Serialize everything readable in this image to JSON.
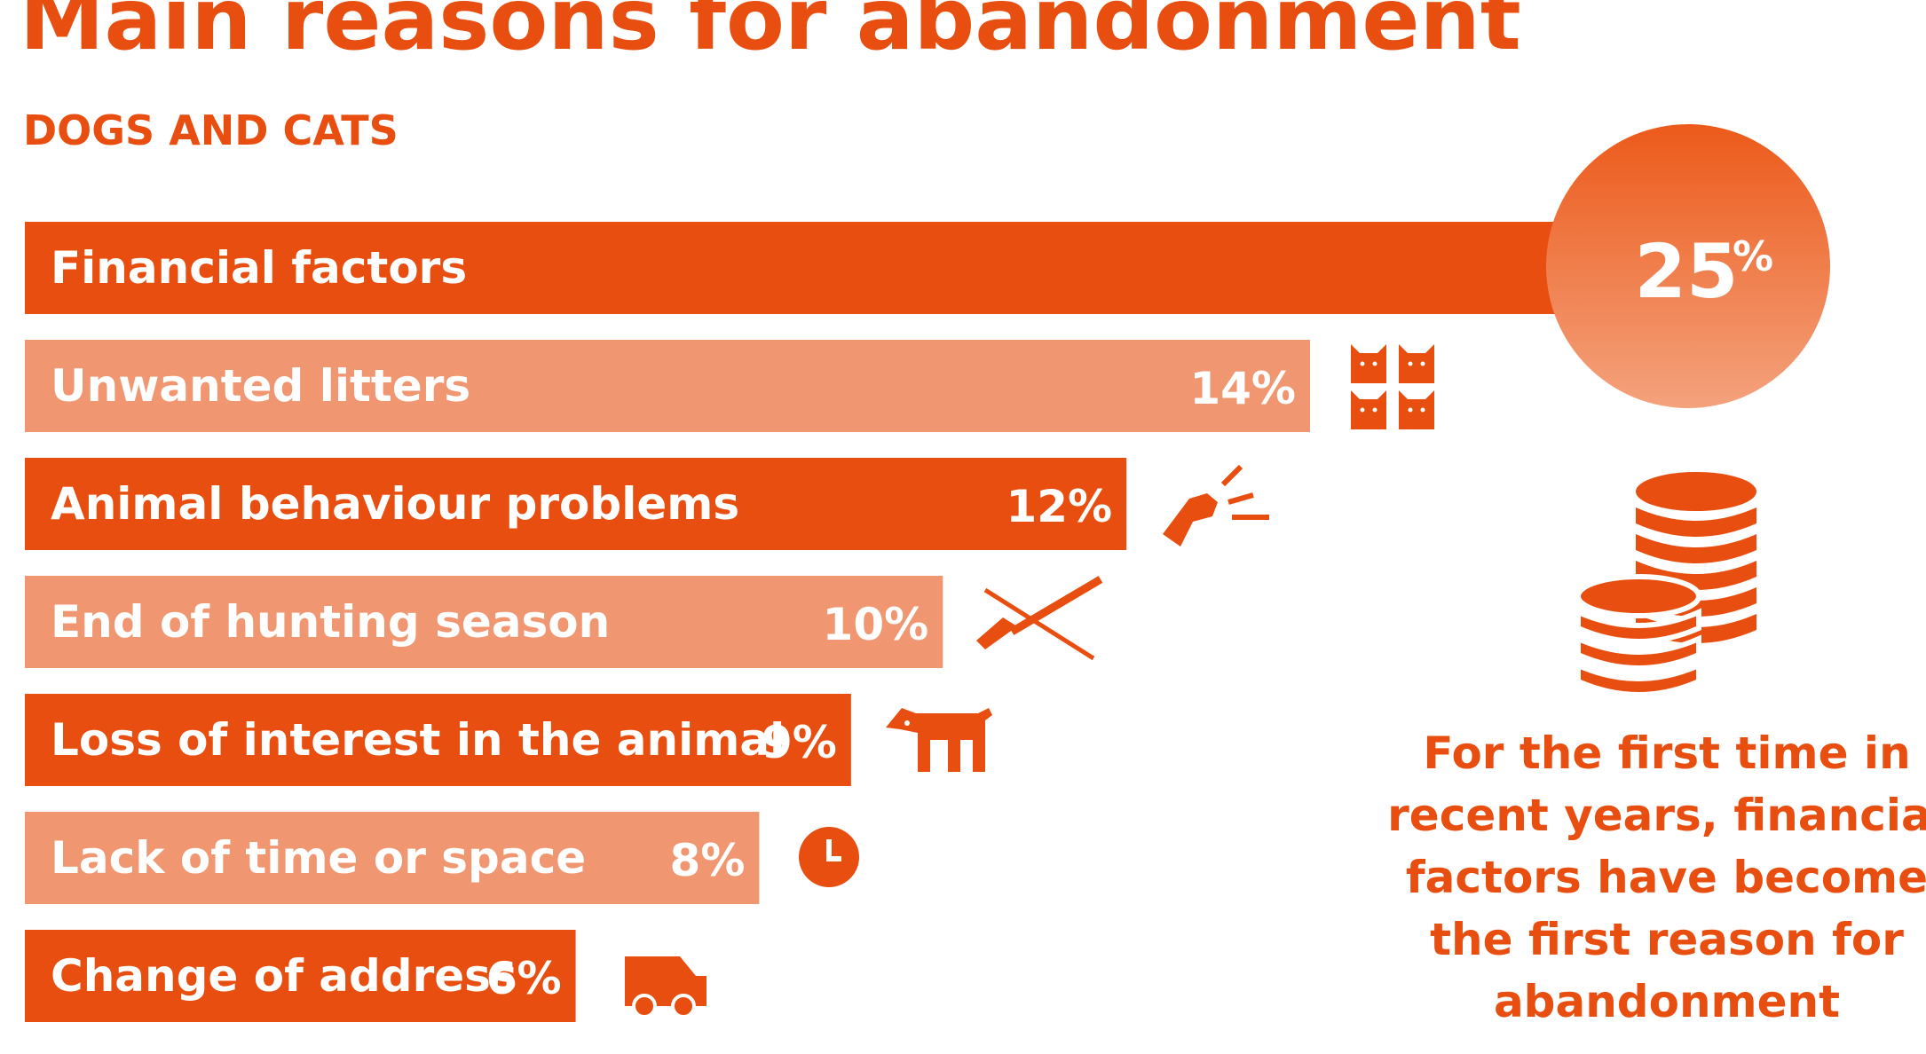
{
  "title": "Main reasons for abandonment",
  "subtitle": "DOGS AND CATS",
  "colors": {
    "accent": "#e84e0f",
    "dark_bar": "#e84e0f",
    "light_bar": "#f09670",
    "text_on_bar": "#ffffff"
  },
  "chart_data": {
    "type": "bar",
    "orientation": "horizontal",
    "title": "Main reasons for abandonment",
    "subtitle": "DOGS AND CATS",
    "unit": "%",
    "categories": [
      "Financial factors",
      "Unwanted litters",
      "Animal behaviour problems",
      "End of hunting season",
      "Loss of interest in the animal",
      "Lack of time or space",
      "Change of address"
    ],
    "values": [
      25,
      14,
      12,
      10,
      9,
      8,
      6
    ],
    "value_labels": [
      "25%",
      "14%",
      "12%",
      "10%",
      "9%",
      "8%",
      "6%"
    ],
    "icons": [
      "coins-icon",
      "cats-icon",
      "barking-dog-icon",
      "crossed-shotgun-icon",
      "dog-icon",
      "clock-icon",
      "van-icon"
    ],
    "highlight": {
      "value_number": "25",
      "value_unit": "%"
    }
  },
  "note": {
    "lines": [
      "For the first time in",
      "recent years, financial",
      "factors have become",
      "the first reason for",
      "abandonment"
    ]
  }
}
